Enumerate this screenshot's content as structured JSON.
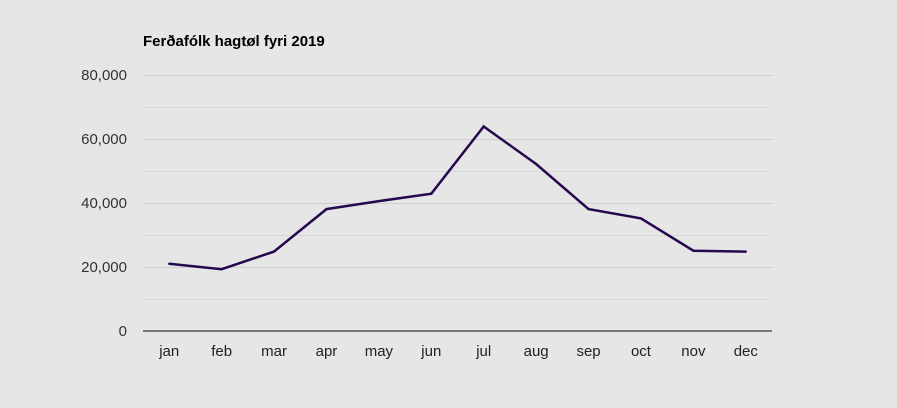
{
  "chart_data": {
    "type": "line",
    "title": "Ferðafólk hagtøl fyri 2019",
    "xlabel": "",
    "ylabel": "",
    "categories": [
      "jan",
      "feb",
      "mar",
      "apr",
      "may",
      "jun",
      "jul",
      "aug",
      "sep",
      "oct",
      "nov",
      "dec"
    ],
    "series": [
      {
        "name": "Ferðafólk",
        "color": "#27084f",
        "values": [
          21000,
          19300,
          24800,
          38100,
          40600,
          42900,
          63900,
          52200,
          38100,
          35200,
          25100,
          24800
        ]
      }
    ],
    "ylim": [
      0,
      80000
    ],
    "y_ticks": [
      0,
      20000,
      40000,
      60000,
      80000
    ],
    "y_tick_labels": [
      "0",
      "20,000",
      "40,000",
      "60,000",
      "80,000"
    ],
    "y_minor_step": 10000,
    "grid": true,
    "legend": "none"
  }
}
